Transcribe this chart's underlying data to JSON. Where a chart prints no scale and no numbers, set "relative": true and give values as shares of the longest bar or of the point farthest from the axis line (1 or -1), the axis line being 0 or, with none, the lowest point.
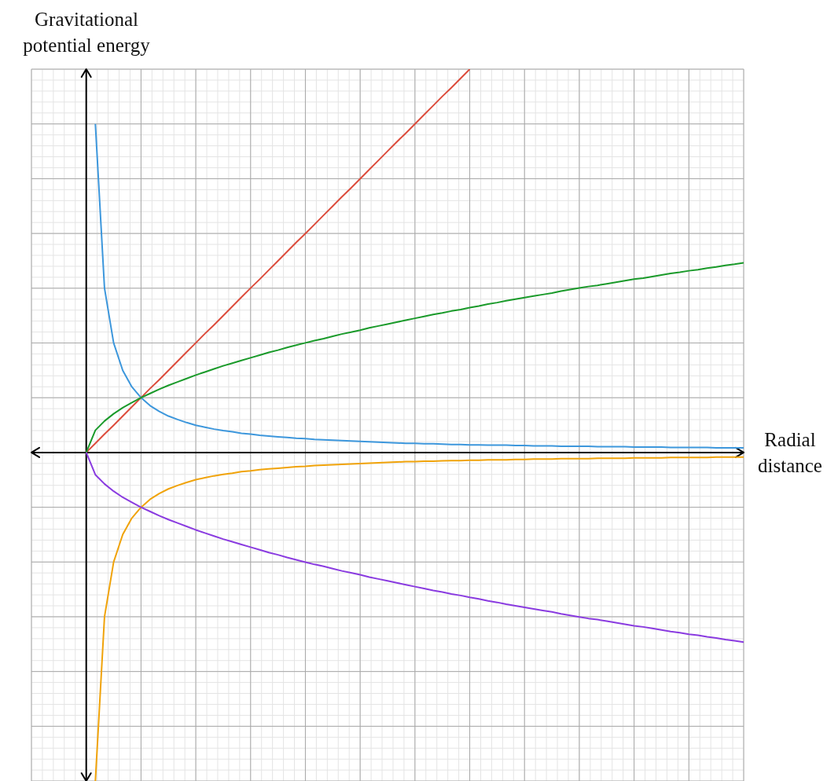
{
  "chart_data": {
    "type": "line",
    "xlabel": "Radial distance",
    "ylabel": "Gravitational potential energy",
    "relative": true,
    "grid": true,
    "marker": "none",
    "line_style": "solid",
    "tick_labels": false,
    "categories": [
      null,
      null,
      null,
      null,
      null,
      null,
      null,
      null,
      null,
      null,
      null,
      null,
      null,
      null,
      null,
      null,
      null,
      null,
      null,
      null,
      null,
      null,
      null,
      null,
      null,
      null,
      null,
      null,
      null,
      null,
      null,
      null,
      null,
      null,
      null,
      null,
      null,
      null,
      null,
      null,
      null,
      null,
      null,
      null,
      null,
      null,
      null,
      null,
      null,
      null,
      null,
      null,
      null,
      null,
      null,
      null,
      null,
      null,
      null,
      null,
      null,
      null,
      null,
      null,
      null,
      null,
      null,
      null,
      null,
      null,
      null,
      null,
      null,
      null,
      null,
      null,
      null,
      null,
      null
    ],
    "series": [
      {
        "color": "#3d97dc",
        "values": [
          null,
          null,
          null,
          null,
          null,
          null,
          null,
          0.857,
          0.429,
          0.286,
          0.214,
          0.171,
          0.143,
          0.122,
          0.107,
          0.095,
          0.086,
          0.078,
          0.071,
          0.066,
          0.061,
          0.057,
          0.054,
          0.05,
          0.048,
          0.045,
          0.043,
          0.041,
          0.039,
          0.037,
          0.036,
          0.034,
          0.033,
          0.032,
          0.031,
          0.03,
          0.029,
          0.028,
          0.027,
          0.026,
          0.025,
          0.024,
          0.024,
          0.023,
          0.023,
          0.022,
          0.021,
          0.021,
          0.02,
          0.02,
          0.019,
          0.019,
          0.019,
          0.018,
          0.018,
          0.017,
          0.017,
          0.017,
          0.016,
          0.016,
          0.016,
          0.016,
          0.015,
          0.015,
          0.015,
          0.015,
          0.014,
          0.014,
          0.014,
          0.014,
          0.013,
          0.013,
          0.013,
          0.013,
          0.013,
          0.012,
          0.012,
          0.012,
          0.012
        ]
      },
      {
        "color": "#dc4c3c",
        "values": [
          null,
          null,
          null,
          null,
          null,
          null,
          0,
          0.024,
          0.048,
          0.071,
          0.095,
          0.119,
          0.143,
          0.167,
          0.19,
          0.214,
          0.238,
          0.262,
          0.286,
          0.31,
          0.333,
          0.357,
          0.381,
          0.405,
          0.429,
          0.452,
          0.476,
          0.5,
          0.524,
          0.548,
          0.571,
          0.595,
          0.619,
          0.643,
          0.667,
          0.69,
          0.714,
          0.738,
          0.762,
          0.786,
          0.81,
          0.833,
          0.857,
          0.881,
          0.905,
          0.929,
          0.952,
          0.976,
          1,
          null,
          null,
          null,
          null,
          null,
          null,
          null,
          null,
          null,
          null,
          null,
          null,
          null,
          null,
          null,
          null,
          null,
          null,
          null,
          null,
          null,
          null,
          null,
          null,
          null,
          null,
          null,
          null,
          null,
          null
        ]
      },
      {
        "color": "#1a9a2a",
        "values": [
          null,
          null,
          null,
          null,
          null,
          null,
          0,
          0.058,
          0.082,
          0.101,
          0.117,
          0.13,
          0.143,
          0.154,
          0.165,
          0.175,
          0.184,
          0.193,
          0.202,
          0.21,
          0.218,
          0.226,
          0.233,
          0.24,
          0.247,
          0.254,
          0.261,
          0.267,
          0.274,
          0.28,
          0.286,
          0.292,
          0.297,
          0.303,
          0.309,
          0.314,
          0.319,
          0.325,
          0.33,
          0.335,
          0.34,
          0.345,
          0.35,
          0.355,
          0.36,
          0.364,
          0.369,
          0.373,
          0.378,
          0.382,
          0.387,
          0.391,
          0.396,
          0.4,
          0.404,
          0.408,
          0.412,
          0.416,
          0.421,
          0.425,
          0.429,
          0.433,
          0.436,
          0.44,
          0.444,
          0.448,
          0.452,
          0.455,
          0.459,
          0.463,
          0.467,
          0.47,
          0.474,
          0.477,
          0.481,
          0.484,
          0.488,
          0.491,
          0.495
        ]
      },
      {
        "color": "#f0a30a",
        "values": [
          null,
          null,
          null,
          null,
          null,
          null,
          null,
          -0.857,
          -0.429,
          -0.286,
          -0.214,
          -0.171,
          -0.143,
          -0.122,
          -0.107,
          -0.095,
          -0.086,
          -0.078,
          -0.071,
          -0.066,
          -0.061,
          -0.057,
          -0.054,
          -0.05,
          -0.048,
          -0.045,
          -0.043,
          -0.041,
          -0.039,
          -0.037,
          -0.036,
          -0.034,
          -0.033,
          -0.032,
          -0.031,
          -0.03,
          -0.029,
          -0.028,
          -0.027,
          -0.026,
          -0.025,
          -0.024,
          -0.024,
          -0.023,
          -0.023,
          -0.022,
          -0.021,
          -0.021,
          -0.02,
          -0.02,
          -0.019,
          -0.019,
          -0.019,
          -0.018,
          -0.018,
          -0.017,
          -0.017,
          -0.017,
          -0.016,
          -0.016,
          -0.016,
          -0.016,
          -0.015,
          -0.015,
          -0.015,
          -0.015,
          -0.014,
          -0.014,
          -0.014,
          -0.014,
          -0.013,
          -0.013,
          -0.013,
          -0.013,
          -0.013,
          -0.012,
          -0.012,
          -0.012,
          -0.012
        ]
      },
      {
        "color": "#8a3be0",
        "values": [
          null,
          null,
          null,
          null,
          null,
          null,
          0,
          -0.058,
          -0.082,
          -0.101,
          -0.117,
          -0.13,
          -0.143,
          -0.154,
          -0.165,
          -0.175,
          -0.184,
          -0.193,
          -0.202,
          -0.21,
          -0.218,
          -0.226,
          -0.233,
          -0.24,
          -0.247,
          -0.254,
          -0.261,
          -0.267,
          -0.274,
          -0.28,
          -0.286,
          -0.292,
          -0.297,
          -0.303,
          -0.309,
          -0.314,
          -0.319,
          -0.325,
          -0.33,
          -0.335,
          -0.34,
          -0.345,
          -0.35,
          -0.355,
          -0.36,
          -0.364,
          -0.369,
          -0.373,
          -0.378,
          -0.382,
          -0.387,
          -0.391,
          -0.396,
          -0.4,
          -0.404,
          -0.408,
          -0.412,
          -0.416,
          -0.421,
          -0.425,
          -0.429,
          -0.433,
          -0.436,
          -0.44,
          -0.444,
          -0.448,
          -0.452,
          -0.455,
          -0.459,
          -0.463,
          -0.467,
          -0.47,
          -0.474,
          -0.477,
          -0.481,
          -0.484,
          -0.488,
          -0.491,
          -0.495
        ]
      }
    ]
  }
}
